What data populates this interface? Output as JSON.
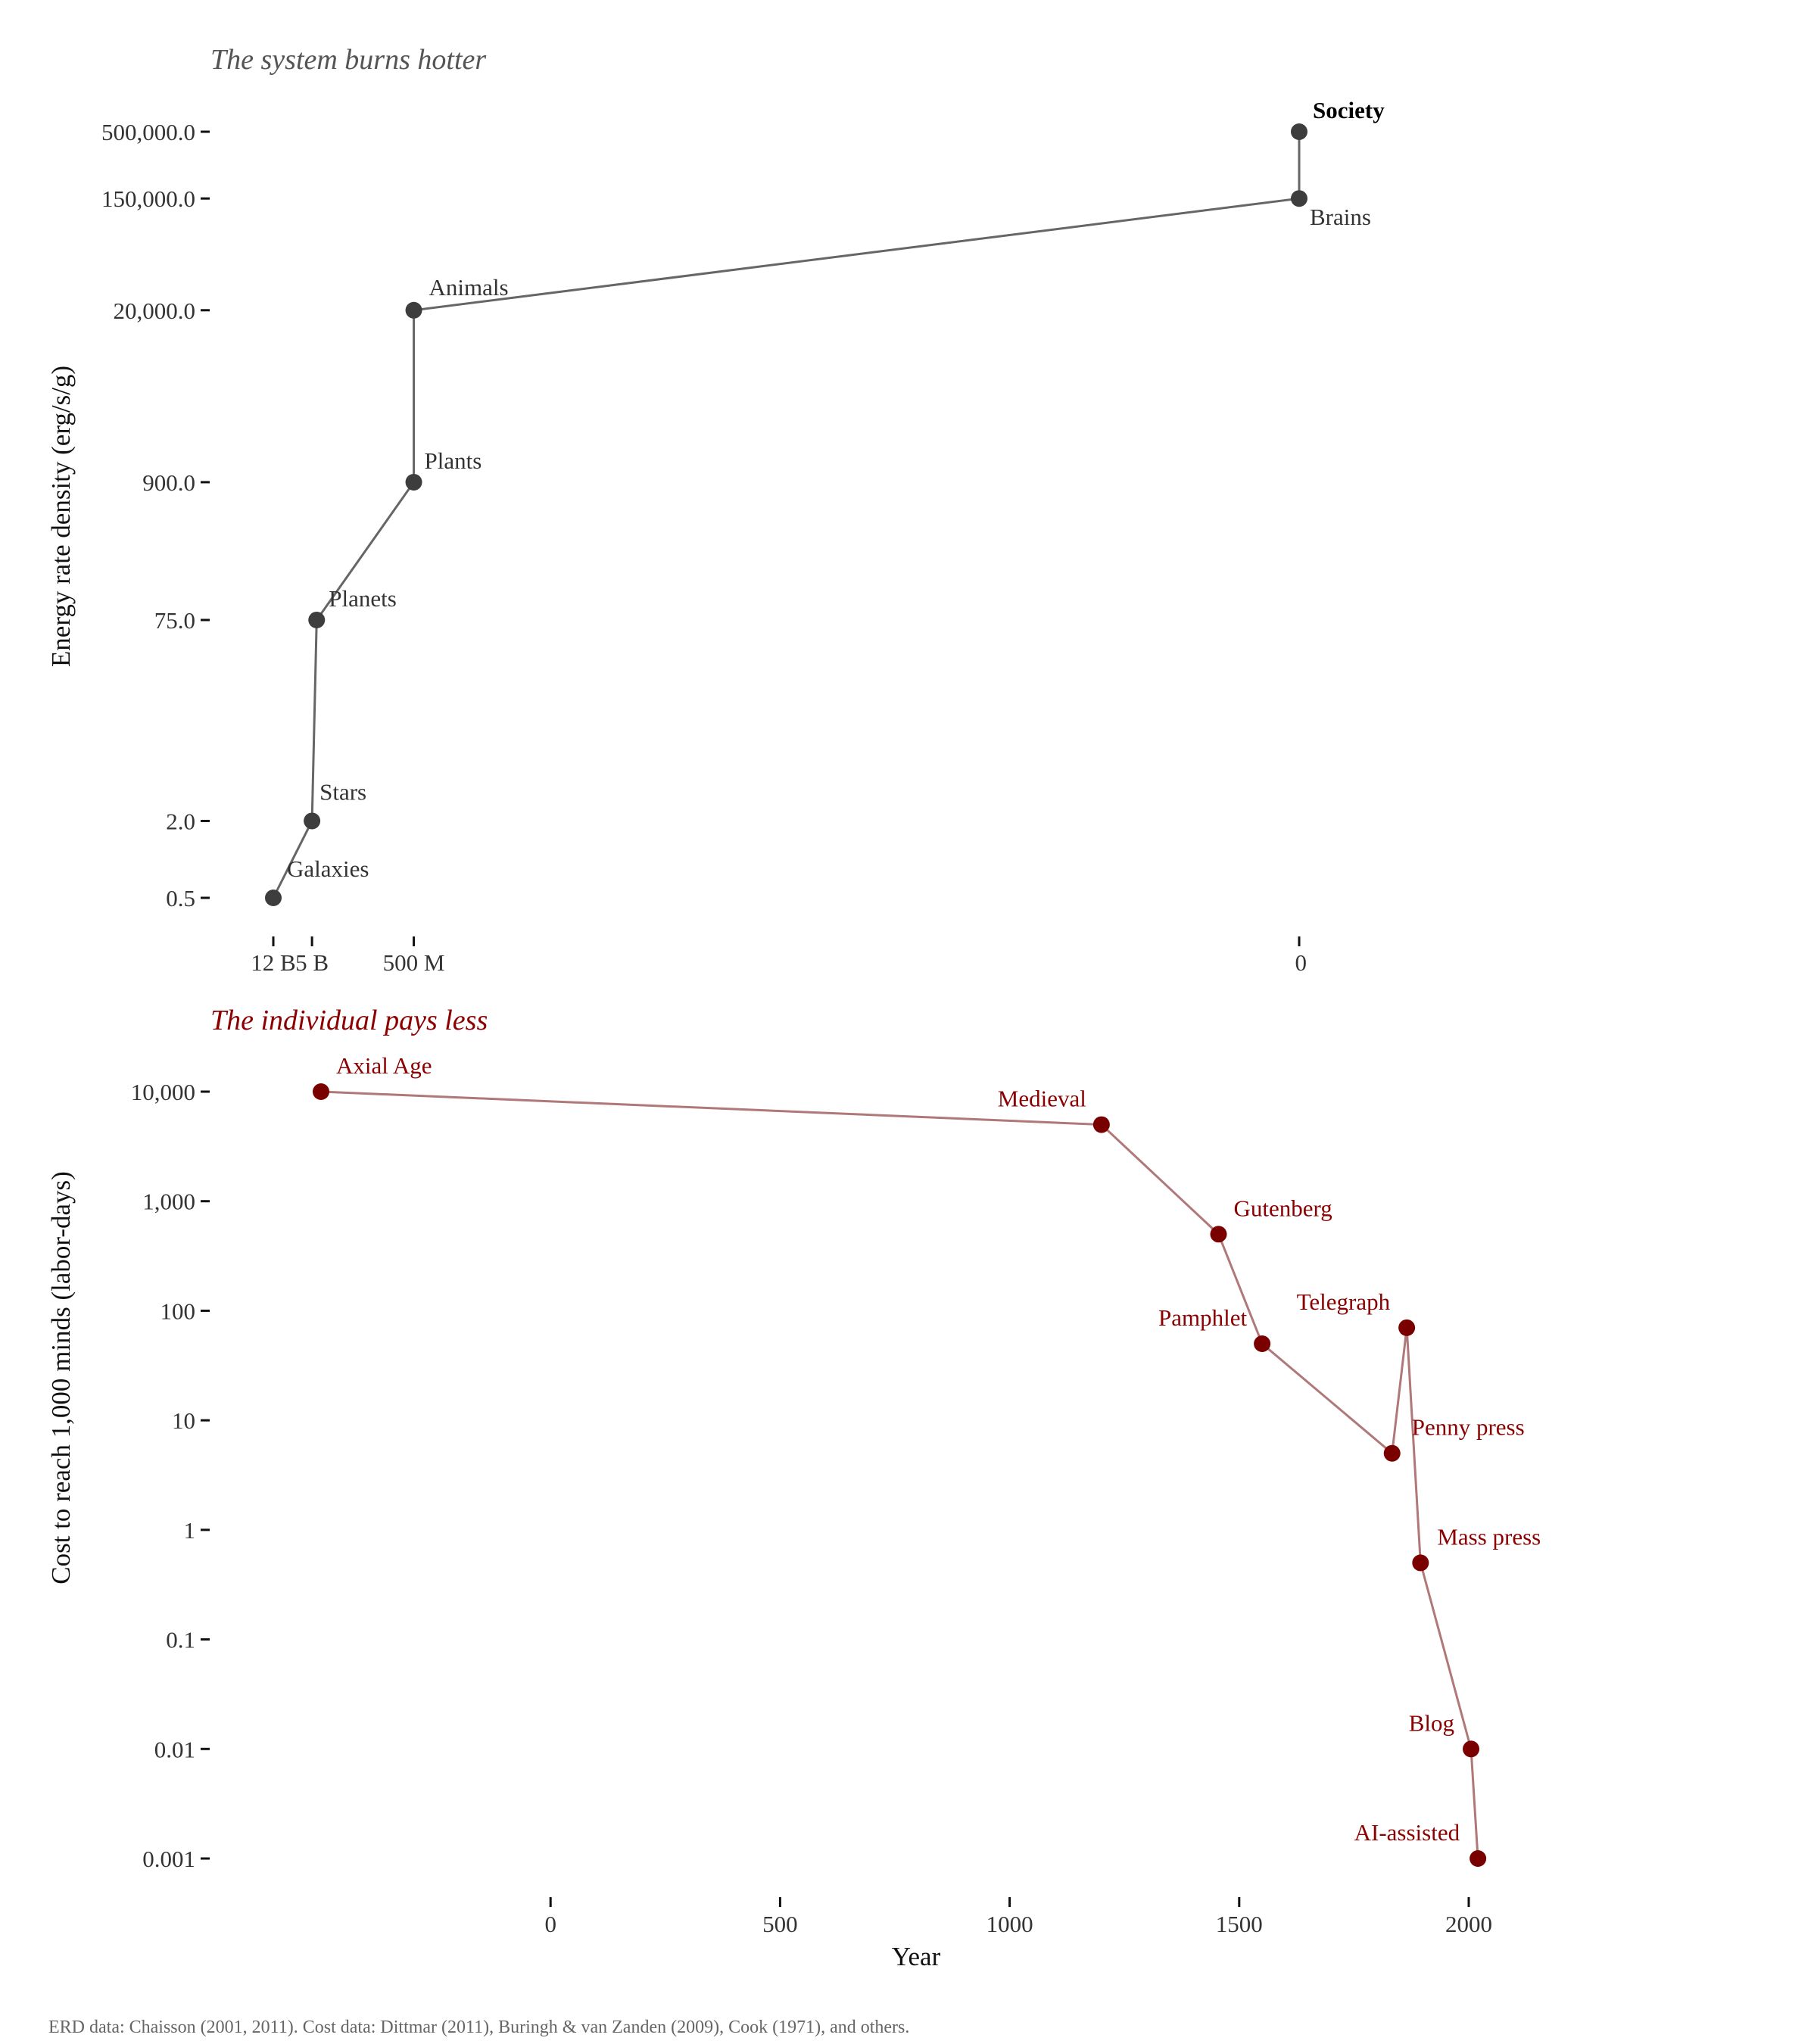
{
  "colors": {
    "top_point": "#3d3d3d",
    "top_line": "#666666",
    "top_title": "#555555",
    "bottom_point": "#7a0000",
    "bottom_line": "#b07878",
    "bottom_title": "#8b0000",
    "axis_ticks": "#111111"
  },
  "caption": "ERD data: Chaisson (2001, 2011). Cost data: Dittmar (2011), Buringh & van Zanden (2009), Cook (1971), and others.",
  "chart_data": [
    {
      "type": "line",
      "title": "The system burns hotter",
      "xlabel": "",
      "ylabel": "Energy rate density (erg/s/g)",
      "y_scale": "log",
      "x_scale": "log (time before present)",
      "grid": false,
      "x_ticks": [
        {
          "value": 12000000000,
          "label": "12 B"
        },
        {
          "value": 5000000000,
          "label": "5 B"
        },
        {
          "value": 500000000,
          "label": "500 M"
        },
        {
          "value": 0,
          "label": "0"
        }
      ],
      "y_ticks": [
        {
          "value": 0.5,
          "label": "0.5"
        },
        {
          "value": 2,
          "label": "2.0"
        },
        {
          "value": 75,
          "label": "75.0"
        },
        {
          "value": 900,
          "label": "900.0"
        },
        {
          "value": 20000,
          "label": "20,000.0"
        },
        {
          "value": 150000,
          "label": "150,000.0"
        },
        {
          "value": 500000,
          "label": "500,000.0"
        }
      ],
      "points": [
        {
          "label": "Galaxies",
          "x": 12000000000,
          "y": 0.5
        },
        {
          "label": "Stars",
          "x": 5000000000,
          "y": 2
        },
        {
          "label": "Planets",
          "x": 4500000000,
          "y": 75
        },
        {
          "label": "Plants",
          "x": 500000000,
          "y": 900
        },
        {
          "label": "Animals",
          "x": 500000000,
          "y": 20000
        },
        {
          "label": "Brains",
          "x": 0,
          "y": 150000
        },
        {
          "label": "Society",
          "x": 0,
          "y": 500000,
          "bold": true
        }
      ]
    },
    {
      "type": "line",
      "title": "The individual pays less",
      "xlabel": "Year",
      "ylabel": "Cost to reach 1,000 minds (labor-days)",
      "y_scale": "log",
      "xlim": [
        -500,
        2000
      ],
      "grid": false,
      "x_ticks": [
        {
          "value": 0,
          "label": "0"
        },
        {
          "value": 500,
          "label": "500"
        },
        {
          "value": 1000,
          "label": "1000"
        },
        {
          "value": 1500,
          "label": "1500"
        },
        {
          "value": 2000,
          "label": "2000"
        }
      ],
      "y_ticks": [
        {
          "value": 0.001,
          "label": "0.001"
        },
        {
          "value": 0.01,
          "label": "0.01"
        },
        {
          "value": 0.1,
          "label": "0.1"
        },
        {
          "value": 1,
          "label": "1"
        },
        {
          "value": 10,
          "label": "10"
        },
        {
          "value": 100,
          "label": "100"
        },
        {
          "value": 1000,
          "label": "1,000"
        },
        {
          "value": 10000,
          "label": "10,000"
        }
      ],
      "points": [
        {
          "label": "Axial Age",
          "x": -500,
          "y": 10000,
          "label_side": "right"
        },
        {
          "label": "Medieval",
          "x": 1200,
          "y": 5000,
          "label_side": "left"
        },
        {
          "label": "Gutenberg",
          "x": 1455,
          "y": 500,
          "label_side": "right"
        },
        {
          "label": "Pamphlet",
          "x": 1550,
          "y": 50,
          "label_side": "left"
        },
        {
          "label": "Penny press",
          "x": 1833,
          "y": 5,
          "label_side": "right"
        },
        {
          "label": "Telegraph",
          "x": 1865,
          "y": 70,
          "label_side": "left"
        },
        {
          "label": "Mass press",
          "x": 1895,
          "y": 0.5,
          "label_side": "right"
        },
        {
          "label": "Blog",
          "x": 2005,
          "y": 0.01,
          "label_side": "left"
        },
        {
          "label": "AI-assisted",
          "x": 2020,
          "y": 0.001,
          "label_side": "left"
        }
      ]
    }
  ]
}
